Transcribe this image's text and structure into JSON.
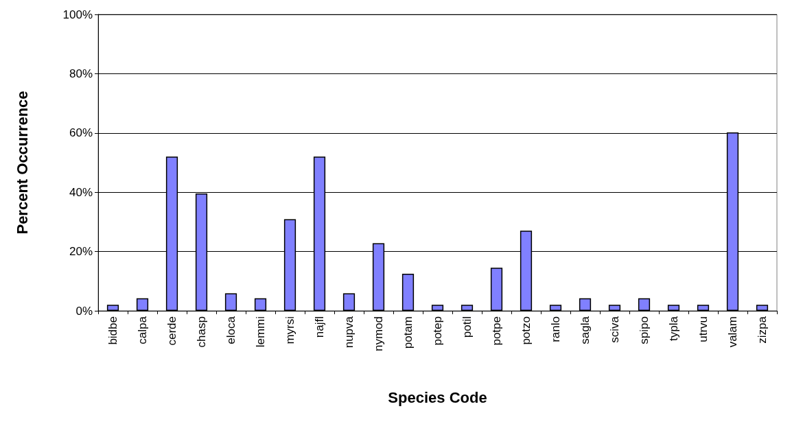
{
  "chart_data": {
    "type": "bar",
    "xlabel": "Species Code",
    "ylabel": "Percent Occurrence",
    "categories": [
      "bidbe",
      "calpa",
      "cerde",
      "chasp",
      "eloca",
      "lemmi",
      "myrsi",
      "najfl",
      "nupva",
      "nymod",
      "potam",
      "potep",
      "potil",
      "potpe",
      "potzo",
      "ranlo",
      "sagla",
      "sciva",
      "spipo",
      "typla",
      "utrvu",
      "valam",
      "zizpa"
    ],
    "values": [
      2,
      4.2,
      52,
      39.6,
      5.9,
      4.2,
      30.9,
      52,
      5.9,
      22.8,
      12.5,
      2,
      2,
      14.5,
      27,
      2,
      4.2,
      2,
      4.2,
      2,
      2,
      60.2,
      2
    ],
    "color": "#8080ff",
    "ylim": [
      0,
      100
    ],
    "yticks": [
      {
        "value": 0,
        "label": "0%"
      },
      {
        "value": 20,
        "label": "20%"
      },
      {
        "value": 40,
        "label": "40%"
      },
      {
        "value": 60,
        "label": "60%"
      },
      {
        "value": 80,
        "label": "80%"
      },
      {
        "value": 100,
        "label": "100%"
      }
    ],
    "grid": "y"
  }
}
